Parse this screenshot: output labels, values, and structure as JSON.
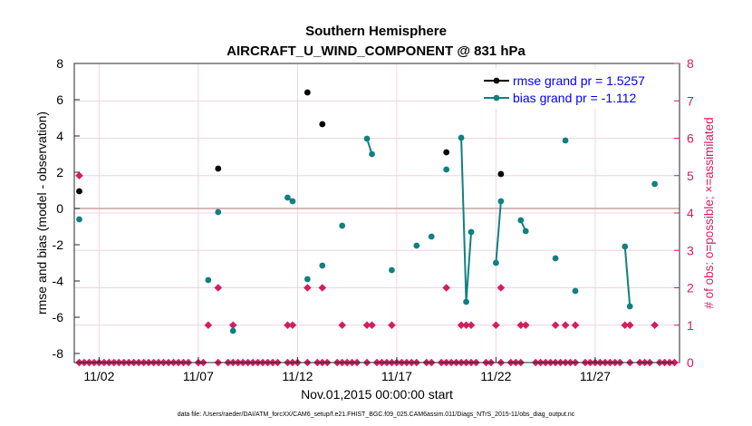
{
  "chart_data": {
    "type": "scatter",
    "title": "Southern Hemisphere",
    "subtitle": "AIRCRAFT_U_WIND_COMPONENT @ 831 hPa",
    "xlabel": "Nov.01,2015 00:00:00 start",
    "ylabel": "rmse and bias (model - observation)",
    "ylabel_right": "# of obs: o=possible; ×=assimilated",
    "footnote": "data file: /Users/raeder/DAI/ATM_forcXX/CAM6_setup/f.e21.FHIST_BGC.f09_025.CAM6assim.011/Diags_NTrS_2015-11/obs_diag_output.nc",
    "xlim": [
      0.75,
      31.25
    ],
    "ylim": [
      -8.5,
      8
    ],
    "ylim_right": [
      0,
      8
    ],
    "x_ticks": [
      2,
      7,
      12,
      17,
      22,
      27
    ],
    "x_tick_labels": [
      "11/02",
      "11/07",
      "11/12",
      "11/17",
      "11/22",
      "11/27"
    ],
    "y_ticks": [
      -8,
      -6,
      -4,
      -2,
      0,
      2,
      4,
      6,
      8
    ],
    "y_tick_labels": [
      "-8",
      "-6",
      "-4",
      "-2",
      "0",
      "2",
      "4",
      "6",
      "8"
    ],
    "y_right_ticks": [
      0,
      1,
      2,
      3,
      4,
      5,
      6,
      7,
      8
    ],
    "y_right_tick_labels": [
      "0",
      "1",
      "2",
      "3",
      "4",
      "5",
      "6",
      "7",
      "8"
    ],
    "zero_line": 0,
    "legend": {
      "placement": "top-right",
      "entries": [
        "rmse grand pr = 1.5257",
        "bias grand pr = -1.112"
      ]
    },
    "colors": {
      "rmse": "#000000",
      "bias": "#118080",
      "obs": "#d81b60",
      "legend_text": "#0000ff",
      "zero_line": "#c8a0a0"
    },
    "series": [
      {
        "name": "rmse",
        "style": "line-marker",
        "segments": [
          [
            [
              1.0,
              0.95
            ]
          ],
          [
            [
              8.0,
              2.2
            ]
          ],
          [
            [
              12.5,
              6.4
            ]
          ],
          [
            [
              13.25,
              4.65
            ]
          ],
          [
            [
              19.5,
              3.1
            ]
          ],
          [
            [
              22.25,
              1.9
            ]
          ]
        ]
      },
      {
        "name": "bias",
        "style": "line-marker",
        "segments": [
          [
            [
              1.0,
              -0.6
            ]
          ],
          [
            [
              7.5,
              -3.95
            ]
          ],
          [
            [
              8.0,
              -0.2
            ]
          ],
          [
            [
              8.75,
              -6.75
            ]
          ],
          [
            [
              11.5,
              0.6
            ],
            [
              11.75,
              0.4
            ]
          ],
          [
            [
              12.5,
              -3.9
            ]
          ],
          [
            [
              13.25,
              -3.15
            ]
          ],
          [
            [
              14.25,
              -0.95
            ]
          ],
          [
            [
              15.5,
              3.85
            ],
            [
              15.75,
              3.0
            ]
          ],
          [
            [
              16.75,
              -3.4
            ]
          ],
          [
            [
              18.0,
              -2.05
            ]
          ],
          [
            [
              18.75,
              -1.55
            ]
          ],
          [
            [
              19.5,
              2.15
            ]
          ],
          [
            [
              20.25,
              3.9
            ],
            [
              20.5,
              -5.15
            ],
            [
              20.75,
              -1.3
            ]
          ],
          [
            [
              22.0,
              -3.0
            ],
            [
              22.25,
              0.4
            ]
          ],
          [
            [
              23.25,
              -0.65
            ],
            [
              23.5,
              -1.25
            ]
          ],
          [
            [
              25.0,
              -2.75
            ]
          ],
          [
            [
              25.5,
              3.75
            ]
          ],
          [
            [
              26.0,
              -4.55
            ]
          ],
          [
            [
              28.5,
              -2.1
            ],
            [
              28.75,
              -5.4
            ]
          ],
          [
            [
              30.0,
              1.35
            ]
          ]
        ]
      },
      {
        "name": "obs_possible",
        "style": "diamond",
        "x": [
          1.0,
          8.0,
          12.5,
          13.25,
          19.5,
          22.25,
          7.5,
          8.75,
          11.5,
          11.75,
          14.25,
          15.5,
          15.75,
          16.75,
          20.25,
          20.5,
          20.75,
          22.0,
          23.25,
          23.5,
          25.0,
          25.5,
          26.0,
          28.5,
          28.75,
          30.0
        ],
        "y": [
          5,
          2,
          2,
          2,
          2,
          2,
          1,
          1,
          1,
          1,
          1,
          1,
          1,
          1,
          1,
          1,
          1,
          1,
          1,
          1,
          1,
          1,
          1,
          1,
          1,
          1
        ]
      },
      {
        "name": "obs_assimilated",
        "style": "diamond",
        "x": [
          1.0,
          1.25,
          1.5,
          1.75,
          2.0,
          2.25,
          2.5,
          2.75,
          3.0,
          3.25,
          3.5,
          3.75,
          4.0,
          4.25,
          4.5,
          4.75,
          5.0,
          5.25,
          5.5,
          5.75,
          6.0,
          6.25,
          6.5,
          7.0,
          7.25,
          8.0,
          8.5,
          8.75,
          9.0,
          9.25,
          9.5,
          9.75,
          10.0,
          10.25,
          10.5,
          10.75,
          11.0,
          11.5,
          11.75,
          12.0,
          12.5,
          13.0,
          13.25,
          13.5,
          14.0,
          14.25,
          14.5,
          14.75,
          15.0,
          15.5,
          16.0,
          16.25,
          16.5,
          16.75,
          17.0,
          17.25,
          17.5,
          17.75,
          18.0,
          18.5,
          18.75,
          19.25,
          19.5,
          19.75,
          20.0,
          20.25,
          20.5,
          20.75,
          21.0,
          21.5,
          21.75,
          22.25,
          22.75,
          23.0,
          23.25,
          24.0,
          24.25,
          24.5,
          24.75,
          25.0,
          25.25,
          25.5,
          25.75,
          26.0,
          26.5,
          26.75,
          27.0,
          27.25,
          27.5,
          27.75,
          28.0,
          28.25,
          28.75,
          29.25,
          29.5,
          29.75,
          30.25,
          30.5,
          30.75,
          31.0
        ],
        "y": [
          0,
          0,
          0,
          0,
          0,
          0,
          0,
          0,
          0,
          0,
          0,
          0,
          0,
          0,
          0,
          0,
          0,
          0,
          0,
          0,
          0,
          0,
          0,
          0,
          0,
          0,
          0,
          0,
          0,
          0,
          0,
          0,
          0,
          0,
          0,
          0,
          0,
          0,
          0,
          0,
          0,
          0,
          0,
          0,
          0,
          0,
          0,
          0,
          0,
          0,
          0,
          0,
          0,
          0,
          0,
          0,
          0,
          0,
          0,
          0,
          0,
          0,
          0,
          0,
          0,
          0,
          0,
          0,
          0,
          0,
          0,
          0,
          0,
          0,
          0,
          0,
          0,
          0,
          0,
          0,
          0,
          0,
          0,
          0,
          0,
          0,
          0,
          0,
          0,
          0,
          0,
          0,
          0,
          0,
          0,
          0,
          0,
          0,
          0,
          0
        ]
      }
    ]
  }
}
